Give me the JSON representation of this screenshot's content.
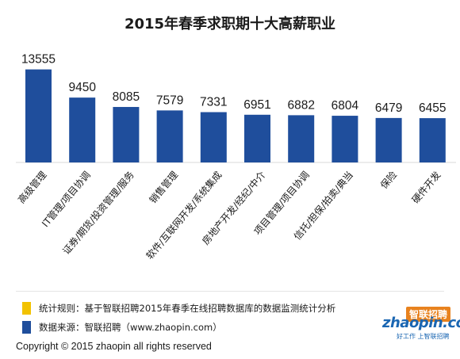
{
  "title": "2015年春季求职期十大高薪职业",
  "chart_data": {
    "type": "bar",
    "title": "2015年春季求职期十大高薪职业",
    "categories": [
      "高级管理",
      "IT管理/项目协调",
      "证券/期货/投资管理/服务",
      "销售管理",
      "软件/互联网开发/系统集成",
      "房地产开发/经纪/中介",
      "项目管理/项目协调",
      "信托/担保/拍卖/典当",
      "保险",
      "硬件开发"
    ],
    "values": [
      13555,
      9450,
      8085,
      7579,
      7331,
      6951,
      6882,
      6804,
      6479,
      6455
    ],
    "value_labels": [
      "13555",
      "9450",
      "8085",
      "7579",
      "7331",
      "6951",
      "6882",
      "6804",
      "6479",
      "6455"
    ],
    "xlabel": "",
    "ylabel": "",
    "ylim": [
      0,
      14200
    ],
    "grid": false,
    "bar_color": "#1f4e9c"
  },
  "legend": [
    {
      "color": "#f2c200",
      "text": "统计规则：基于智联招聘2015年春季在线招聘数据库的数据监测统计分析"
    },
    {
      "color": "#1f4e9c",
      "text": "数据来源：智联招聘（www.zhaopin.com）"
    }
  ],
  "copyright": "Copyright   ©  2015 zhaopin all rights reserved",
  "logo": {
    "cn": "智联招聘",
    "en": "zhaopin.com",
    "sub": "好工作 上智联招聘"
  }
}
